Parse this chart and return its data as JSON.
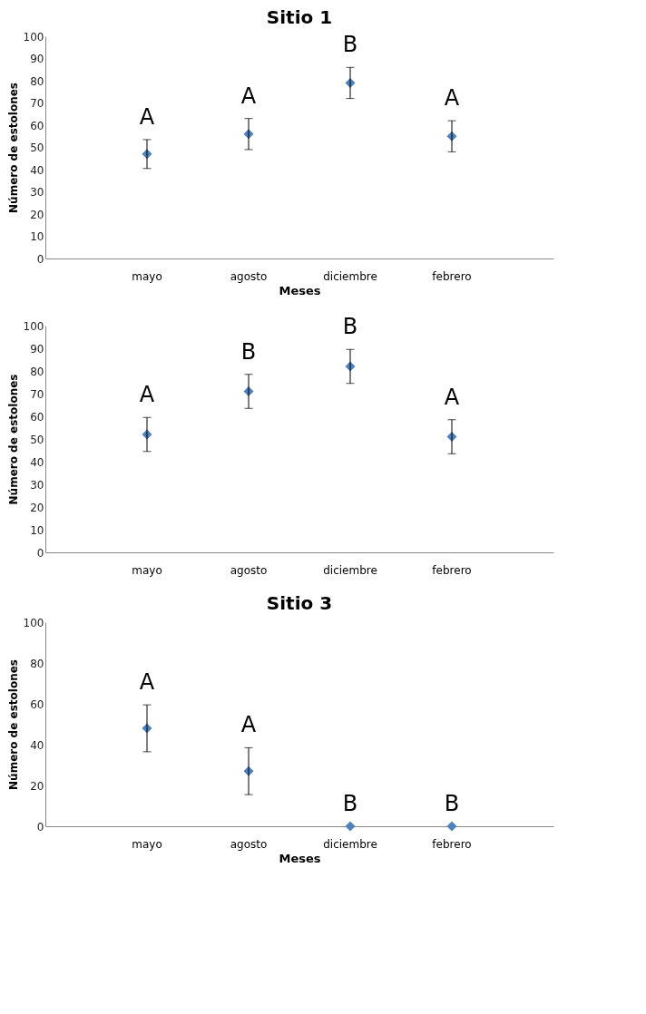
{
  "chart_data": [
    {
      "type": "scatter",
      "title": "Sitio 1",
      "xlabel": "Meses",
      "ylabel": "Número de estolones",
      "categories": [
        "mayo",
        "agosto",
        "diciembre",
        "febrero"
      ],
      "series": [
        {
          "color": "#4f81bd",
          "values": [
            47,
            56,
            79,
            55
          ],
          "errors": [
            6.5,
            7,
            7,
            7
          ]
        }
      ],
      "ylim": [
        0,
        100
      ],
      "yticks": [
        0,
        10,
        20,
        30,
        40,
        50,
        60,
        70,
        80,
        90,
        100
      ],
      "marker": "diamond",
      "grid": false,
      "legend": false,
      "annotations": [
        {
          "text": "A",
          "x": "mayo",
          "y": 53.5
        },
        {
          "text": "A",
          "x": "agosto",
          "y": 63
        },
        {
          "text": "B",
          "x": "diciembre",
          "y": 86
        },
        {
          "text": "A",
          "x": "febrero",
          "y": 62
        }
      ]
    },
    {
      "type": "scatter",
      "ylabel": "Número de estolones",
      "categories": [
        "mayo",
        "agosto",
        "diciembre",
        "febrero"
      ],
      "series": [
        {
          "color": "#4f81bd",
          "values": [
            52,
            71,
            82,
            51
          ],
          "errors": [
            7.5,
            7.5,
            7.5,
            7.5
          ]
        }
      ],
      "ylim": [
        0,
        100
      ],
      "yticks": [
        0,
        10,
        20,
        30,
        40,
        50,
        60,
        70,
        80,
        90,
        100
      ],
      "marker": "diamond",
      "grid": false,
      "legend": false,
      "annotations": [
        {
          "text": "A",
          "x": "mayo",
          "y": 59.5
        },
        {
          "text": "B",
          "x": "agosto",
          "y": 78.5
        },
        {
          "text": "B",
          "x": "diciembre",
          "y": 89.5
        },
        {
          "text": "A",
          "x": "febrero",
          "y": 58.5
        }
      ]
    },
    {
      "type": "scatter",
      "title": "Sitio 3",
      "xlabel": "Meses",
      "ylabel": "Número de estolones",
      "categories": [
        "mayo",
        "agosto",
        "diciembre",
        "febrero"
      ],
      "series": [
        {
          "color": "#4f81bd",
          "values": [
            48,
            27,
            0,
            0
          ],
          "errors": [
            11.5,
            11.5,
            null,
            null
          ]
        }
      ],
      "ylim": [
        0,
        100
      ],
      "yticks": [
        0,
        20,
        40,
        60,
        80,
        100
      ],
      "marker": "diamond",
      "grid": false,
      "legend": false,
      "annotations": [
        {
          "text": "A",
          "x": "mayo",
          "y": 59.5
        },
        {
          "text": "A",
          "x": "agosto",
          "y": 38.5
        },
        {
          "text": "B",
          "x": "diciembre",
          "y": 0
        },
        {
          "text": "B",
          "x": "febrero",
          "y": 0
        }
      ]
    }
  ]
}
